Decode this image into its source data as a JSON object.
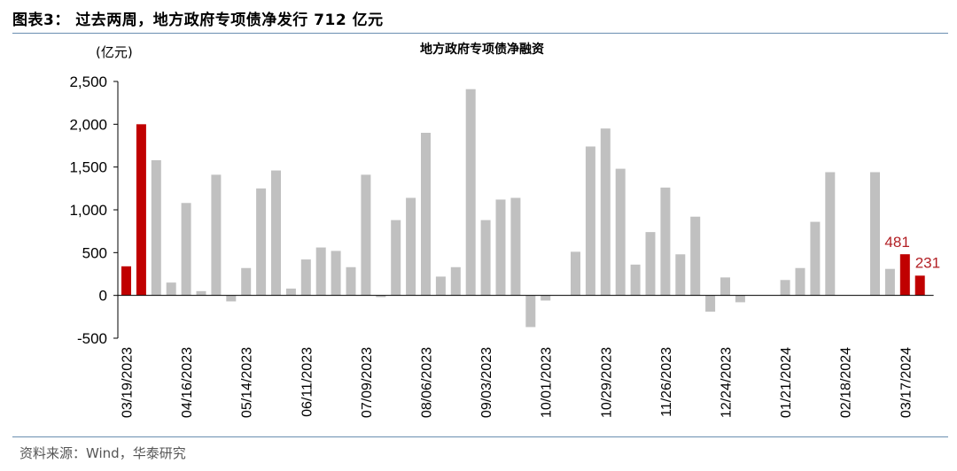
{
  "figure": {
    "title": "图表3： 过去两周，地方政府专项债净发行 712 亿元",
    "source": "资料来源：Wind，华泰研究"
  },
  "chart_data": {
    "type": "bar",
    "title": "地方政府专项债净融资",
    "ylabel": "(亿元)",
    "ylim": [
      -500,
      2500
    ],
    "yticks": [
      -500,
      0,
      500,
      1000,
      1500,
      2000,
      2500
    ],
    "ytick_labels": [
      "-500",
      "0",
      "500",
      "1,000",
      "1,500",
      "2,000",
      "2,500"
    ],
    "x_tick_labels": [
      "03/19/2023",
      "04/16/2023",
      "05/14/2023",
      "06/11/2023",
      "07/09/2023",
      "08/06/2023",
      "09/03/2023",
      "10/01/2023",
      "10/29/2023",
      "11/26/2023",
      "12/24/2023",
      "01/21/2024",
      "02/18/2024",
      "03/17/2024"
    ],
    "grid": false,
    "values": [
      340,
      2000,
      1580,
      150,
      1080,
      50,
      1410,
      -70,
      320,
      1250,
      1460,
      80,
      420,
      560,
      520,
      330,
      1410,
      -20,
      880,
      1140,
      1900,
      220,
      330,
      2410,
      880,
      1120,
      1140,
      -370,
      -60,
      0,
      510,
      1740,
      1950,
      1480,
      360,
      740,
      1260,
      480,
      920,
      -190,
      210,
      -80,
      0,
      0,
      180,
      320,
      860,
      1440,
      0,
      0,
      1440,
      310,
      481,
      231
    ],
    "highlight_indices": [
      0,
      1,
      52,
      53
    ],
    "data_labels": [
      {
        "index": 52,
        "text": "481"
      },
      {
        "index": 53,
        "text": "231"
      }
    ],
    "colors": {
      "normal": "#c0c0c0",
      "highlight": "#c00000",
      "label": "#b21f24"
    }
  }
}
